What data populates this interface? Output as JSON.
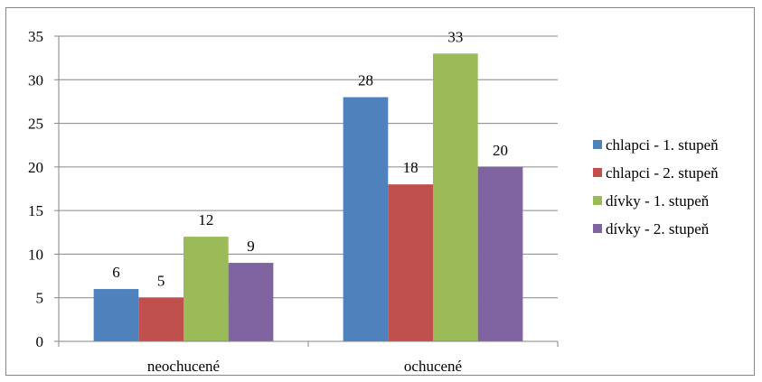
{
  "chart_data": {
    "type": "bar",
    "title": "",
    "xlabel": "",
    "ylabel": "",
    "categories": [
      "neochucené",
      "ochucené"
    ],
    "series": [
      {
        "name": "chlapci - 1. stupeň",
        "values": [
          6,
          28
        ],
        "color": "#4F81BD"
      },
      {
        "name": "chlapci - 2. stupeň",
        "values": [
          5,
          18
        ],
        "color": "#C0504D"
      },
      {
        "name": "dívky - 1. stupeň",
        "values": [
          12,
          33
        ],
        "color": "#9BBB59"
      },
      {
        "name": "dívky - 2. stupeň",
        "values": [
          9,
          20
        ],
        "color": "#8064A2"
      }
    ],
    "ylim": [
      0,
      35
    ],
    "yticks": [
      0,
      5,
      10,
      15,
      20,
      25,
      30,
      35
    ],
    "grid": true,
    "data_labels": true,
    "legend_position": "right"
  }
}
